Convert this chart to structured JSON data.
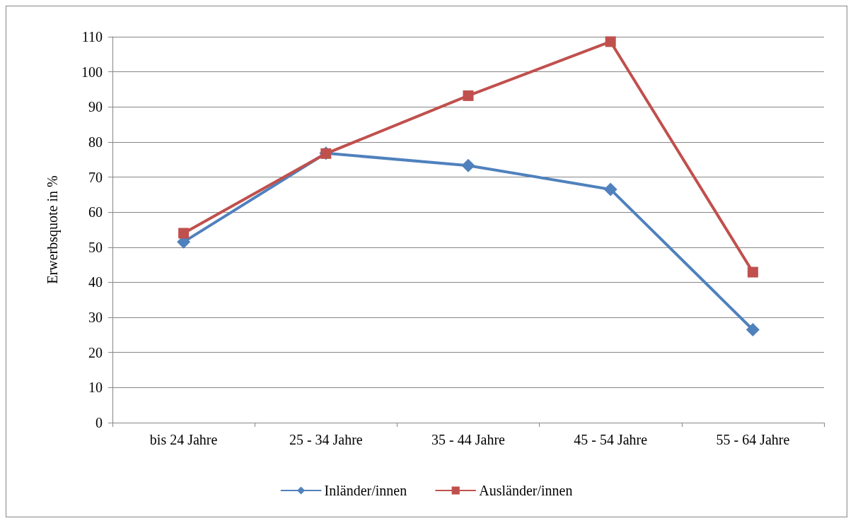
{
  "chart_data": {
    "type": "line",
    "ylabel": "Erwerbsquote in %",
    "categories": [
      "bis 24 Jahre",
      "25 - 34 Jahre",
      "35 - 44 Jahre",
      "45 - 54 Jahre",
      "55 - 64 Jahre"
    ],
    "series": [
      {
        "name": "Inländer/innen",
        "color": "#4f81bd",
        "marker": "diamond",
        "values": [
          51.5,
          76.8,
          73.3,
          66.5,
          26.5
        ]
      },
      {
        "name": "Ausländer/innen",
        "color": "#c0504d",
        "marker": "square",
        "values": [
          54.0,
          76.7,
          93.2,
          108.6,
          42.9
        ]
      }
    ],
    "ylim": [
      0,
      110
    ],
    "yticks": [
      0,
      10,
      20,
      30,
      40,
      50,
      60,
      70,
      80,
      90,
      100,
      110
    ],
    "grid": "y",
    "legend": "bottom",
    "line_style": "solid"
  }
}
